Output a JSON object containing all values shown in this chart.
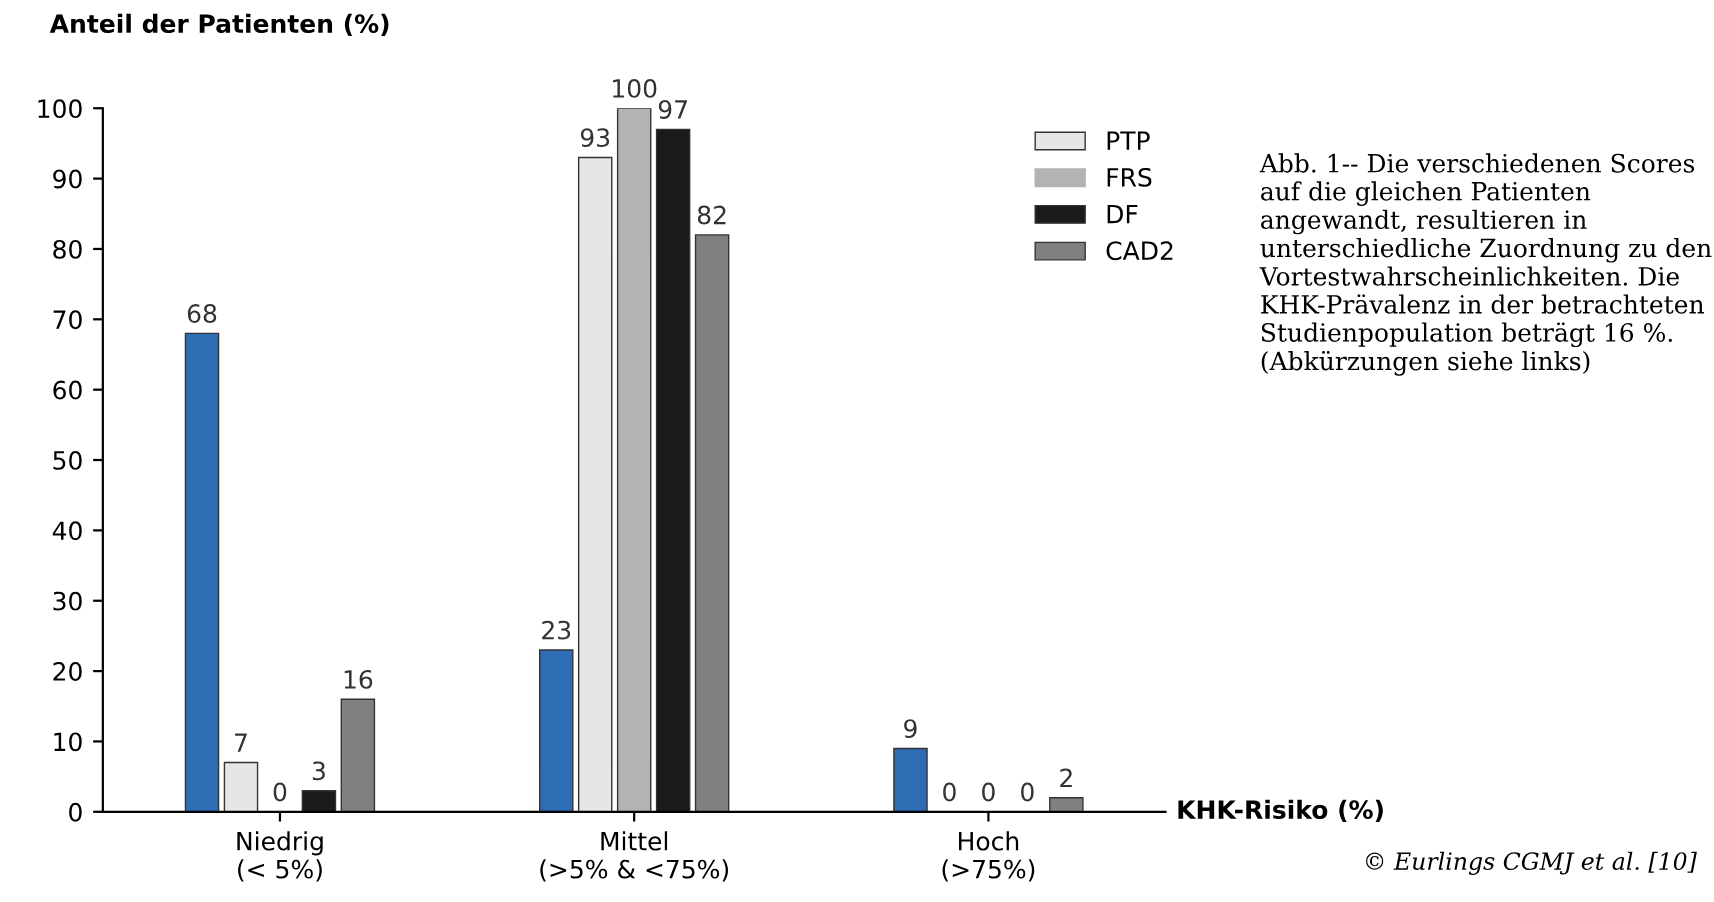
{
  "chart_data": {
    "type": "bar",
    "ylabel": "Anteil der Patienten (%)",
    "xlabel": "KHK-Risiko (%)",
    "categories": [
      "Niedrig\n(< 5%)",
      "Mittel\n(>5% & <75%)",
      "Hoch\n(>75%)"
    ],
    "series": [
      {
        "color": "#2e6db4",
        "values": [
          68,
          23,
          9
        ]
      },
      {
        "name": "PTP",
        "color": "#e6e6e6",
        "values": [
          7,
          93,
          0
        ]
      },
      {
        "name": "FRS",
        "color": "#b3b3b3",
        "values": [
          0,
          100,
          0
        ]
      },
      {
        "name": "DF",
        "color": "#1a1a1a",
        "values": [
          3,
          97,
          0
        ]
      },
      {
        "name": "CAD2",
        "color": "#808080",
        "values": [
          16,
          82,
          2
        ]
      }
    ],
    "ylim": [
      0,
      100
    ],
    "yticks": [
      0,
      10,
      20,
      30,
      40,
      50,
      60,
      70,
      80,
      90,
      100
    ],
    "data_labels": true,
    "grid": false,
    "legend": "top right",
    "annotations": [
      "Abb. 1-- Die verschiedenen Scores auf die gleichen Patienten angewandt, resultieren in unterschiedliche Zuordnung zu den Vortestwahrscheinlichkeiten. Die KHK-Prävalenz in der betrachteten Studienpopulation beträgt 16 %. (Abkürzungen siehe links)",
      "© Eurlings CGMJ et al. [10]"
    ]
  }
}
